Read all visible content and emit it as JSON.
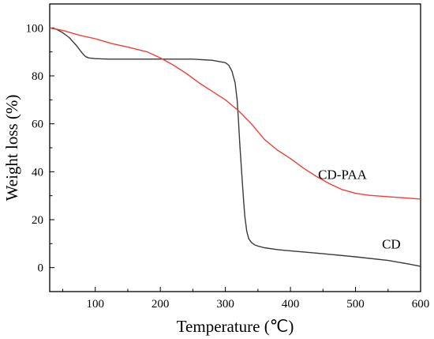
{
  "chart_data": {
    "type": "line",
    "title": "",
    "xlabel": "Temperature (℃)",
    "ylabel": "Weight loss (%)",
    "xlim": [
      30,
      600
    ],
    "ylim": [
      -10,
      110
    ],
    "xticks": [
      100,
      200,
      300,
      400,
      500,
      600
    ],
    "yticks": [
      0,
      20,
      40,
      60,
      80,
      100
    ],
    "grid": false,
    "legend": "none",
    "series": [
      {
        "name": "CD",
        "color": "#3a3a3a",
        "x": [
          30,
          40,
          50,
          60,
          70,
          80,
          85,
          90,
          100,
          120,
          150,
          200,
          250,
          280,
          300,
          305,
          310,
          315,
          318,
          320,
          322,
          325,
          328,
          330,
          333,
          336,
          340,
          345,
          350,
          360,
          380,
          400,
          450,
          500,
          550,
          580,
          600
        ],
        "y": [
          100,
          99.5,
          98,
          96,
          93,
          89.5,
          88,
          87.5,
          87.2,
          87,
          87,
          87,
          87,
          86.5,
          85.5,
          84.5,
          82,
          77,
          70,
          62,
          52,
          40,
          28,
          21,
          15,
          12,
          10.5,
          9.5,
          9,
          8.3,
          7.5,
          7,
          5.8,
          4.5,
          3,
          1.6,
          0.5
        ]
      },
      {
        "name": "CD-PAA",
        "color": "#e8423a",
        "x": [
          30,
          50,
          75,
          100,
          125,
          150,
          180,
          200,
          220,
          240,
          260,
          280,
          300,
          320,
          340,
          360,
          380,
          400,
          420,
          440,
          460,
          480,
          500,
          520,
          550,
          580,
          600
        ],
        "y": [
          100,
          99,
          97,
          95.5,
          93.5,
          92,
          90,
          87.5,
          84.5,
          81,
          77,
          73.5,
          70,
          65.5,
          60,
          53.5,
          49,
          45.5,
          41.5,
          38,
          35,
          32.5,
          31,
          30.2,
          29.6,
          29,
          28.6
        ]
      }
    ],
    "annotations": [
      {
        "text": "CD-PAA",
        "x": 480,
        "y": 37
      },
      {
        "text": "CD",
        "x": 555,
        "y": 8
      }
    ]
  }
}
